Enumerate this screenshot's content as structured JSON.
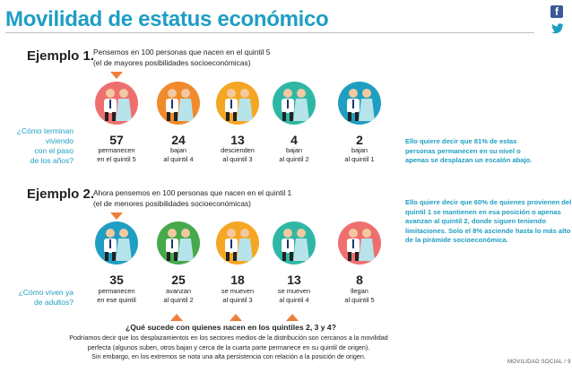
{
  "title": "Movilidad de estatus económico",
  "social": {
    "facebook": "facebook-icon",
    "twitter": "twitter-icon"
  },
  "colors": {
    "blue": "#1f9ec2",
    "orange": "#ef7f3b",
    "q5": "#ef6f6f",
    "q4": "#f08a2b",
    "q3": "#f5a623",
    "q2": "#2fb7a6",
    "q1": "#1f9ec2",
    "green": "#46a94b"
  },
  "example1": {
    "label": "Ejemplo 1.",
    "desc_line1": "Pensemos en 100 personas que nacen en el quintil 5",
    "desc_line2": "(el de mayores posibilidades socioeconómicas)",
    "question_line1": "¿Cómo terminan",
    "question_line2": "viviendo",
    "question_line3": "con el paso",
    "question_line4": "de los años?",
    "items": [
      {
        "number": "57",
        "line1": "permanecen",
        "line2": "en el quintil 5"
      },
      {
        "number": "24",
        "line1": "bajan",
        "line2": "al quintil 4"
      },
      {
        "number": "13",
        "line1": "descienden",
        "line2": "al quintil 3"
      },
      {
        "number": "4",
        "line1": "bajan",
        "line2": "al quintil 2"
      },
      {
        "number": "2",
        "line1": "bajan",
        "line2": "al quintil 1"
      }
    ],
    "note_line1": "Ello quiere decir que 81% de estas",
    "note_line2": "personas permanecen en su nivel o",
    "note_line3": "apenas se desplazan un escalón abajo."
  },
  "example2": {
    "label": "Ejemplo 2.",
    "desc_line1": "Ahora pensemos en 100 personas que nacen en el quintil 1",
    "desc_line2": "(el de menores posibilidades socioeconómicas)",
    "question_line1": "¿Cómo viven ya",
    "question_line2": "de adultos?",
    "items": [
      {
        "number": "35",
        "line1": "permanecen",
        "line2": "en ese quintil"
      },
      {
        "number": "25",
        "line1": "avanzan",
        "line2": "al quintil 2"
      },
      {
        "number": "18",
        "line1": "se mueven",
        "line2": "al quintil 3"
      },
      {
        "number": "13",
        "line1": "se mueven",
        "line2": "al quintil 4"
      },
      {
        "number": "8",
        "line1": "llegan",
        "line2": "al quintil 5"
      }
    ],
    "note_line1": "Ello quiere decir que 60% de quienes provienen del",
    "note_line2": "quintil 1 se mantienen en esa posición o apenas",
    "note_line3": "avanzan al quintil 2, donde siguen teniendo",
    "note_line4": "limitaciones. Solo el 8% asciende hasta lo más alto",
    "note_line5": "de la pirámide socioeconómica."
  },
  "section3": {
    "question": "¿Qué sucede con quienes nacen en los quintiles 2, 3 y 4?",
    "line1": "Podríamos decir que los desplazamientos en los sectores medios de la distribución son cercanos a la movilidad",
    "line2": "perfecta (algunos suben, otros bajan y cerca de la cuarta parte permanece en su quintil de origen).",
    "line3": "Sin embargo, en los extremos se nota una alta persistencia con relación a la posición de origen."
  },
  "footer": "MOVILIDAD SOCIAL / 9"
}
